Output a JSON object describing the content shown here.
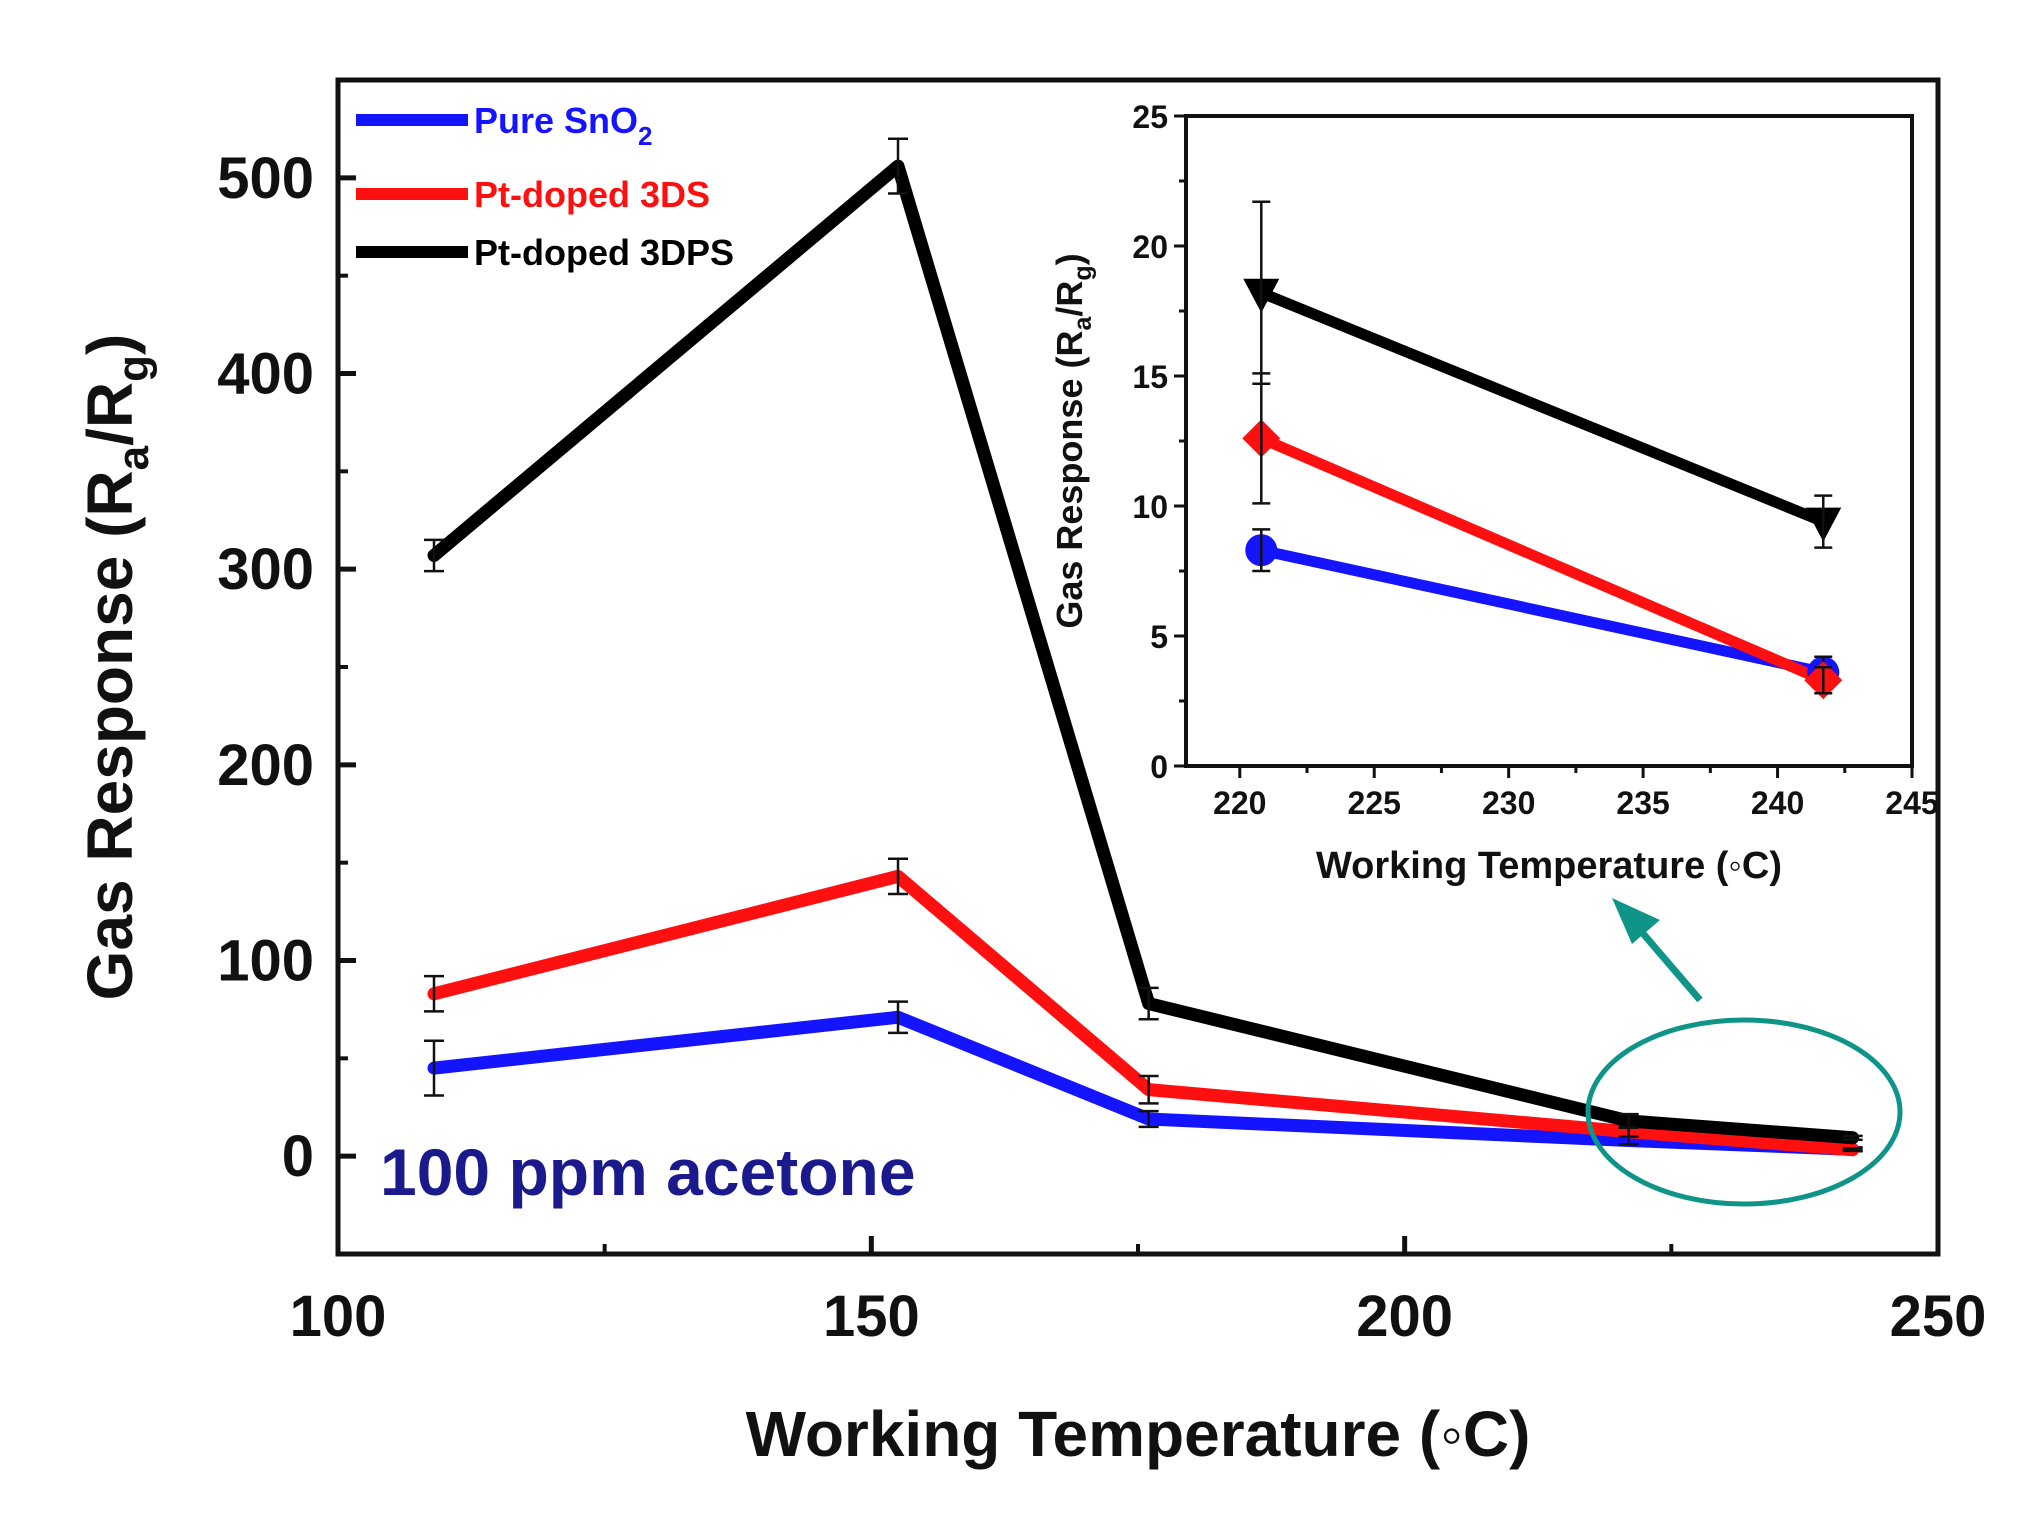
{
  "chart_data": [
    {
      "type": "line",
      "title": "",
      "xlabel": "Working Temperature (◦C)",
      "ylabel": {
        "main": "Gas Response (R",
        "sub_a": "a",
        "slash": "/R",
        "sub_g": "g",
        "close": ")"
      },
      "xlim": [
        100,
        250
      ],
      "ylim": [
        -50,
        550
      ],
      "xticks": [
        100,
        150,
        200,
        250
      ],
      "yticks": [
        0,
        100,
        200,
        300,
        400,
        500
      ],
      "xtick_labels": [
        "100",
        "150",
        "200",
        "250"
      ],
      "ytick_labels": [
        "0",
        "100",
        "200",
        "300",
        "400",
        "500"
      ],
      "annotation": "100 ppm acetone",
      "legend_position": "top-left",
      "series": [
        {
          "name": "Pure SnO",
          "name_sub": "2",
          "color": "#1414ff",
          "x": [
            109,
            152.5,
            176,
            221,
            242
          ],
          "y": [
            45,
            71,
            19,
            8,
            3.5
          ],
          "err": [
            14,
            8,
            4,
            2,
            1
          ]
        },
        {
          "name": "Pt-doped 3DS",
          "name_sub": "",
          "color": "#ff1010",
          "x": [
            109,
            152.5,
            176,
            221,
            242
          ],
          "y": [
            83,
            143,
            34,
            12.5,
            3.3
          ],
          "err": [
            9,
            9,
            7,
            2.5,
            0.6
          ]
        },
        {
          "name": "Pt-doped 3DPS",
          "name_sub": "",
          "color": "#000000",
          "x": [
            109,
            152.5,
            176,
            221,
            242
          ],
          "y": [
            307,
            506,
            78,
            18,
            9.4
          ],
          "err": [
            8,
            14,
            8,
            3.5,
            1
          ]
        }
      ]
    },
    {
      "type": "line",
      "title": "",
      "xlabel": "Working Temperature (◦C)",
      "ylabel": {
        "main": "Gas Response (R",
        "sub_a": "a",
        "slash": "/R",
        "sub_g": "g",
        "close": ")"
      },
      "xlim": [
        218,
        245
      ],
      "ylim": [
        0,
        25
      ],
      "xticks": [
        220,
        225,
        230,
        235,
        240,
        245
      ],
      "yticks": [
        0,
        5,
        10,
        15,
        20,
        25
      ],
      "xtick_labels": [
        "220",
        "225",
        "230",
        "235",
        "240",
        "245"
      ],
      "ytick_labels": [
        "0",
        "5",
        "10",
        "15",
        "20",
        "25"
      ],
      "series": [
        {
          "name": "Pure SnO2",
          "color": "#1414ff",
          "marker": "circle",
          "x": [
            220.8,
            241.7
          ],
          "y": [
            8.3,
            3.6
          ],
          "err": [
            0.8,
            0.6
          ]
        },
        {
          "name": "Pt-doped 3DS",
          "color": "#ff1010",
          "marker": "diamond",
          "x": [
            220.8,
            241.7
          ],
          "y": [
            12.6,
            3.3
          ],
          "err": [
            2.5,
            0.5
          ]
        },
        {
          "name": "Pt-doped 3DPS",
          "color": "#000000",
          "marker": "triangle-down",
          "x": [
            220.8,
            241.7
          ],
          "y": [
            18.2,
            9.4
          ],
          "err": [
            3.5,
            1.0
          ]
        }
      ]
    }
  ],
  "colors": {
    "highlight": "#0f9488",
    "axis": "#111111",
    "annotation": "#1a1a8c"
  }
}
